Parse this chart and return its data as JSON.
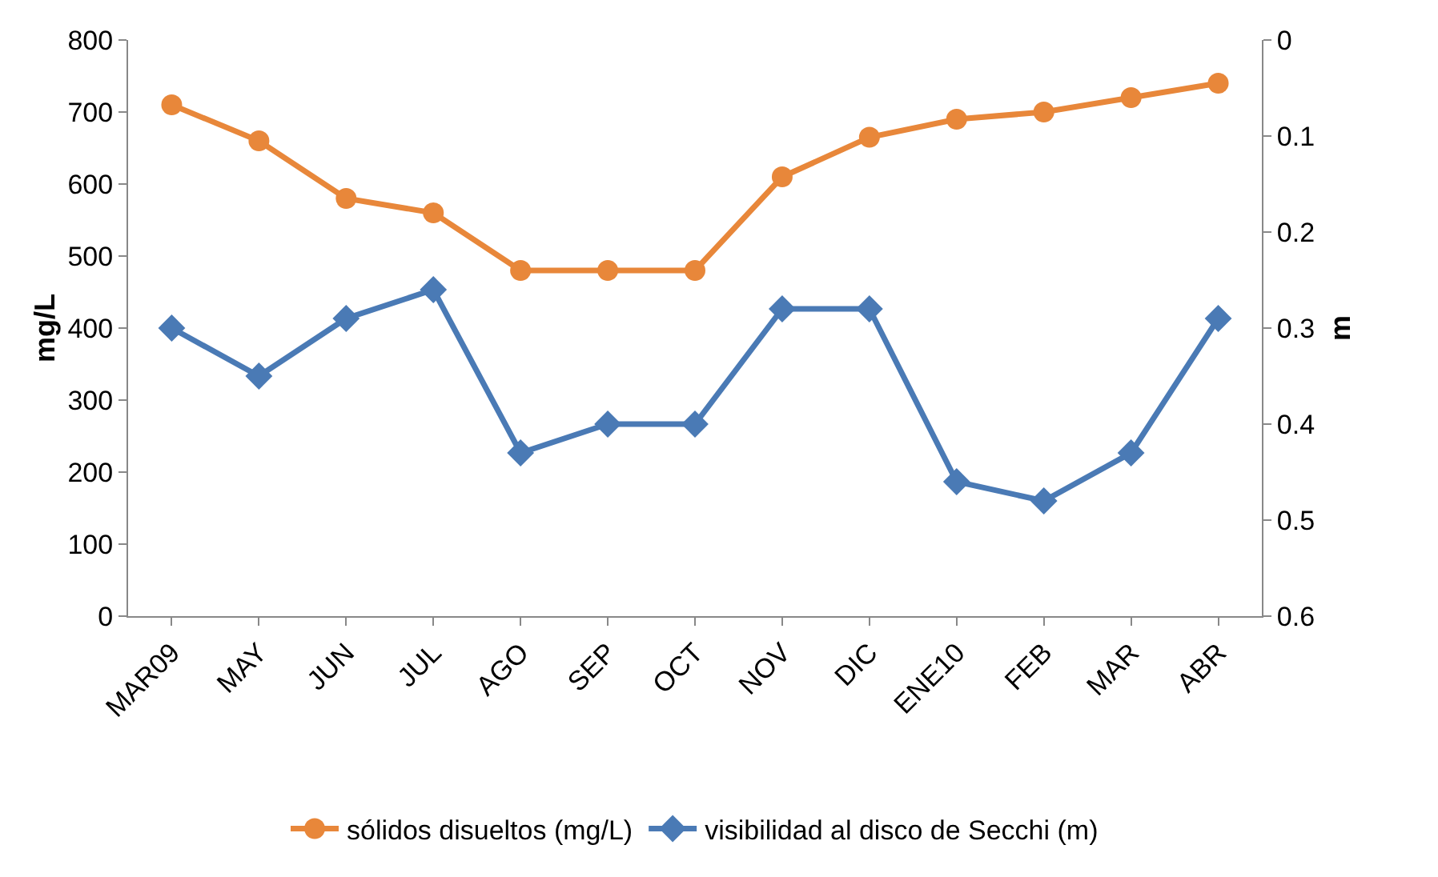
{
  "chart_data": {
    "type": "line",
    "categories": [
      "MAR09",
      "MAY",
      "JUN",
      "JUL",
      "AGO",
      "SEP",
      "OCT",
      "NOV",
      "DIC",
      "ENE10",
      "FEB",
      "MAR",
      "ABR"
    ],
    "series": [
      {
        "name": "sólidos disueltos (mg/L)",
        "color": "#e8873a",
        "marker": "circle",
        "values": [
          710,
          660,
          580,
          560,
          480,
          480,
          480,
          610,
          665,
          690,
          700,
          720,
          740
        ]
      },
      {
        "name": "visibilidad al disco de Secchi (m)",
        "color": "#4a7ab5",
        "marker": "diamond",
        "axis": "y2",
        "values": [
          0.3,
          0.35,
          0.29,
          0.26,
          0.43,
          0.4,
          0.4,
          0.28,
          0.28,
          0.46,
          0.48,
          0.43,
          0.29
        ]
      }
    ],
    "ylabel": "mg/L",
    "y2label": "m",
    "ylim": [
      0,
      800
    ],
    "yticks": [
      0,
      100,
      200,
      300,
      400,
      500,
      600,
      700,
      800
    ],
    "y2lim": [
      0.6,
      0
    ],
    "y2ticks": [
      0,
      0.1,
      0.2,
      0.3,
      0.4,
      0.5,
      0.6
    ],
    "grid": false,
    "legend": "bottom",
    "line_style": "solid"
  }
}
